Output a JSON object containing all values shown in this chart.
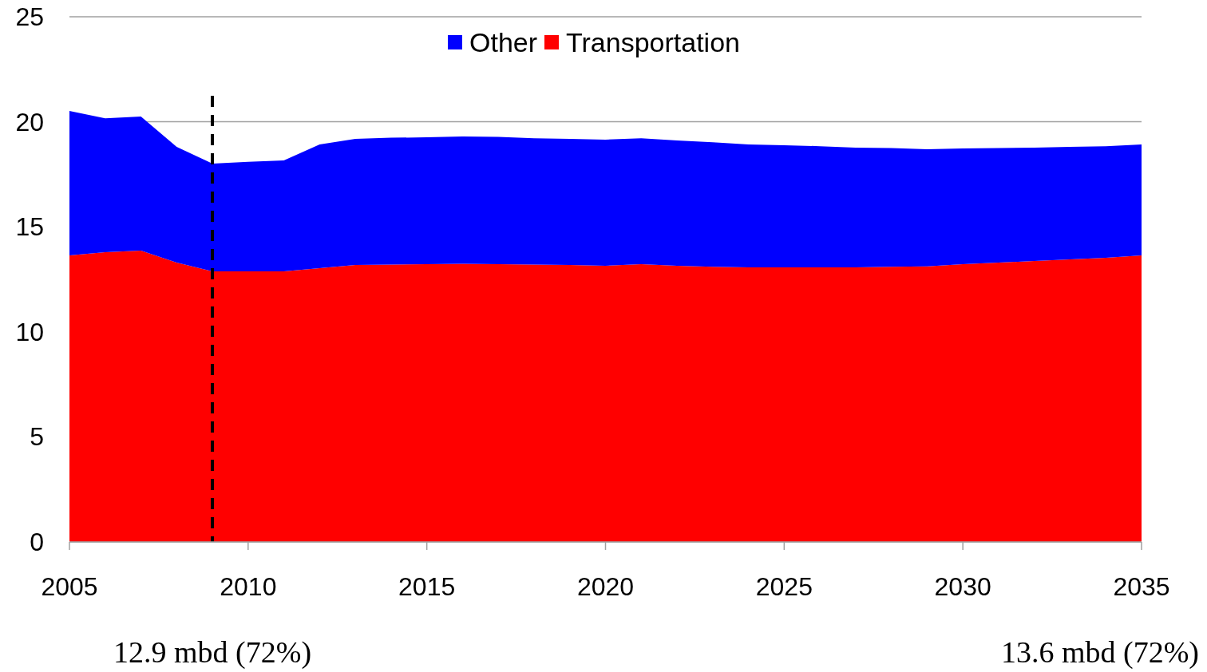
{
  "chart_data": {
    "type": "area",
    "stacked": true,
    "x": [
      2005,
      2006,
      2007,
      2008,
      2009,
      2010,
      2011,
      2012,
      2013,
      2014,
      2015,
      2016,
      2017,
      2018,
      2019,
      2020,
      2021,
      2022,
      2023,
      2024,
      2025,
      2026,
      2027,
      2028,
      2029,
      2030,
      2031,
      2032,
      2033,
      2034,
      2035
    ],
    "series": [
      {
        "name": "Transportation",
        "color": "#ff0000",
        "values": [
          13.64,
          13.79,
          13.87,
          13.3,
          12.88,
          12.88,
          12.88,
          13.03,
          13.18,
          13.2,
          13.22,
          13.24,
          13.22,
          13.2,
          13.18,
          13.15,
          13.22,
          13.15,
          13.1,
          13.07,
          13.07,
          13.07,
          13.07,
          13.1,
          13.12,
          13.22,
          13.3,
          13.37,
          13.45,
          13.53,
          13.64
        ]
      },
      {
        "name": "Other",
        "color": "#0000ff",
        "values": [
          6.88,
          6.38,
          6.38,
          5.51,
          5.13,
          5.21,
          5.28,
          5.89,
          6.01,
          6.04,
          6.04,
          6.06,
          6.06,
          6.02,
          6.01,
          6.0,
          6.0,
          5.96,
          5.93,
          5.85,
          5.81,
          5.77,
          5.7,
          5.65,
          5.57,
          5.51,
          5.45,
          5.4,
          5.36,
          5.31,
          5.28
        ]
      }
    ],
    "xlim": [
      2005,
      2035
    ],
    "xticks": [
      2005,
      2010,
      2015,
      2020,
      2025,
      2030,
      2035
    ],
    "ylim": [
      0,
      25
    ],
    "yticks": [
      0,
      5,
      10,
      15,
      20,
      25
    ],
    "grid": "y",
    "legend": "top",
    "ref_lines": [
      {
        "axis": "x",
        "value": 2009,
        "color": "#000000",
        "line_style": "dashed"
      }
    ],
    "annotations": [
      "12.9 mbd (72%)",
      "13.6 mbd (72%)"
    ]
  }
}
